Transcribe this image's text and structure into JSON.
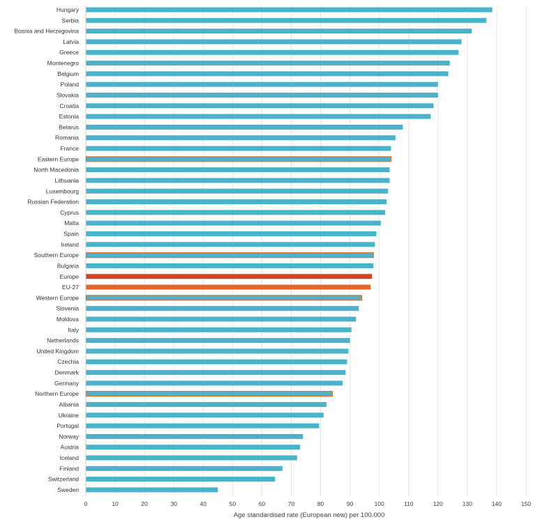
{
  "chart_data": {
    "type": "bar",
    "orientation": "horizontal",
    "title": "",
    "xlabel": "Age standardised rate (European new) per 100.000",
    "ylabel": "",
    "xlim": [
      0,
      150
    ],
    "xticks": [
      0,
      10,
      20,
      30,
      40,
      50,
      60,
      70,
      80,
      90,
      100,
      110,
      120,
      130,
      140,
      150
    ],
    "grid": "vertical",
    "legend": "none",
    "colors": {
      "country": "#4ab3c9",
      "region": "#4ab3c9",
      "region_outline": "#e4702c",
      "Europe": "#d4422a",
      "EU-27": "#e8662a"
    },
    "categories": [
      "Hungary",
      "Serbia",
      "Bosnia and Herzegovina",
      "Latvia",
      "Greece",
      "Montenegro",
      "Belgium",
      "Poland",
      "Slovakia",
      "Croatia",
      "Estonia",
      "Belarus",
      "Romania",
      "France",
      "Eastern Europe",
      "North Macedonia",
      "Lithuania",
      "Luxembourg",
      "Russian Federation",
      "Cyprus",
      "Malta",
      "Spain",
      "Ireland",
      "Southern Europe",
      "Bulgaria",
      "Europe",
      "EU-27",
      "Western Europe",
      "Slovenia",
      "Moldova",
      "Italy",
      "Netherlands",
      "United Kingdom",
      "Czechia",
      "Denmark",
      "Germany",
      "Northern Europe",
      "Albania",
      "Ukraine",
      "Portugal",
      "Norway",
      "Austria",
      "Iceland",
      "Finland",
      "Switzerland",
      "Sweden"
    ],
    "values": [
      138.5,
      136.5,
      131.5,
      128.0,
      127.0,
      124.0,
      123.5,
      120.0,
      120.0,
      118.5,
      117.5,
      108.0,
      105.5,
      104.0,
      104.0,
      103.5,
      103.5,
      103.0,
      102.5,
      102.0,
      100.5,
      99.0,
      98.5,
      98.0,
      98.0,
      97.5,
      97.0,
      94.0,
      93.0,
      92.0,
      90.5,
      90.0,
      89.5,
      89.0,
      88.5,
      87.5,
      84.0,
      82.0,
      81.0,
      79.5,
      74.0,
      73.0,
      72.0,
      67.0,
      64.5,
      45.0
    ],
    "highlight": {
      "Eastern Europe": "region",
      "Southern Europe": "region",
      "Western Europe": "region",
      "Northern Europe": "region",
      "Europe": "Europe",
      "EU-27": "EU-27"
    }
  }
}
